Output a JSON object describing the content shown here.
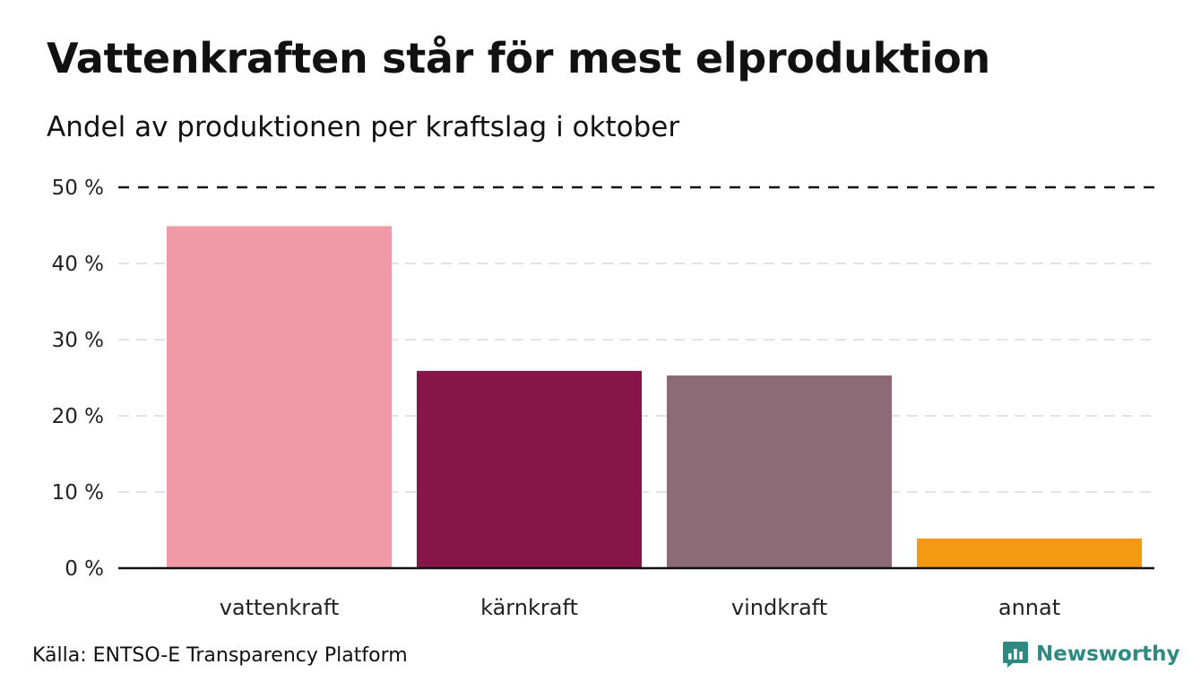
{
  "chart_data": {
    "type": "bar",
    "title": "Vattenkraften står för mest elproduktion",
    "subtitle": "Andel av produktionen per kraftslag i oktober",
    "categories": [
      "vattenkraft",
      "kärnkraft",
      "vindkraft",
      "annat"
    ],
    "values": [
      44.9,
      25.9,
      25.3,
      3.9
    ],
    "colors": [
      "#f09aa8",
      "#861648",
      "#8b6b76",
      "#f39a12"
    ],
    "ylim": [
      0,
      50
    ],
    "yticks": [
      0,
      10,
      20,
      30,
      40,
      50
    ],
    "ytick_labels": [
      "0 %",
      "10 %",
      "20 %",
      "30 %",
      "40 %",
      "50 %"
    ],
    "grid": true,
    "xlabel": "",
    "ylabel": ""
  },
  "footer": {
    "source": "Källa: ENTSO-E Transparency Platform",
    "brand": "Newsworthy",
    "brand_icon": "newsworthy-logo-icon"
  }
}
